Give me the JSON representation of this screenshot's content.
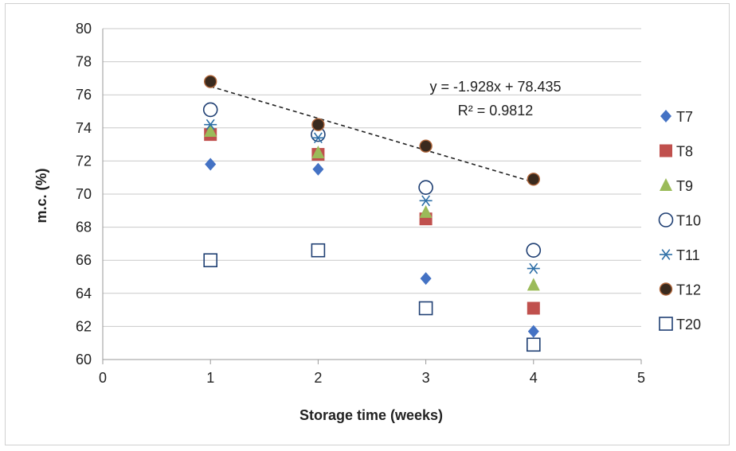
{
  "chart_data": {
    "type": "scatter",
    "title": "",
    "xlabel": "Storage time (weeks)",
    "ylabel": "m.c. (%)",
    "xlim": [
      0,
      5
    ],
    "ylim": [
      60,
      80
    ],
    "x_ticks": [
      "0",
      "1",
      "2",
      "3",
      "4",
      "5"
    ],
    "y_ticks": [
      "60",
      "62",
      "64",
      "66",
      "68",
      "70",
      "72",
      "74",
      "76",
      "78",
      "80"
    ],
    "grid": "horizontal",
    "legend_position": "right",
    "series": [
      {
        "name": "T7",
        "marker": "diamond",
        "color": "#4472C4",
        "x": [
          1,
          2,
          3,
          4
        ],
        "y": [
          71.8,
          71.5,
          64.9,
          61.7
        ]
      },
      {
        "name": "T8",
        "marker": "square",
        "color": "#C0504D",
        "x": [
          1,
          2,
          3,
          4
        ],
        "y": [
          73.6,
          72.4,
          68.5,
          63.1
        ]
      },
      {
        "name": "T9",
        "marker": "triangle",
        "color": "#9BBB59",
        "x": [
          1,
          2,
          3,
          4
        ],
        "y": [
          73.8,
          72.5,
          68.9,
          64.5
        ]
      },
      {
        "name": "T10",
        "marker": "circle-open",
        "color": "#1F3F73",
        "x": [
          1,
          2,
          3,
          4
        ],
        "y": [
          75.1,
          73.6,
          70.4,
          66.6
        ]
      },
      {
        "name": "T11",
        "marker": "star",
        "color": "#2E6FA7",
        "x": [
          1,
          2,
          3,
          4
        ],
        "y": [
          74.2,
          73.4,
          69.6,
          65.5
        ]
      },
      {
        "name": "T12",
        "marker": "circle-filled",
        "color": "#3A2A1E",
        "x": [
          1,
          2,
          3,
          4
        ],
        "y": [
          76.8,
          74.2,
          72.9,
          70.9
        ]
      },
      {
        "name": "T20",
        "marker": "square-open",
        "color": "#1F3F73",
        "x": [
          1,
          2,
          3,
          4
        ],
        "y": [
          66.0,
          66.6,
          63.1,
          60.9
        ]
      }
    ],
    "trendline": {
      "series": "T12",
      "slope": -1.928,
      "intercept": 78.435,
      "x_range": [
        1,
        4
      ],
      "equation": "y = -1.928x + 78.435",
      "r_squared": "R² = 0.9812",
      "style": "dashed",
      "color": "#222222"
    }
  }
}
